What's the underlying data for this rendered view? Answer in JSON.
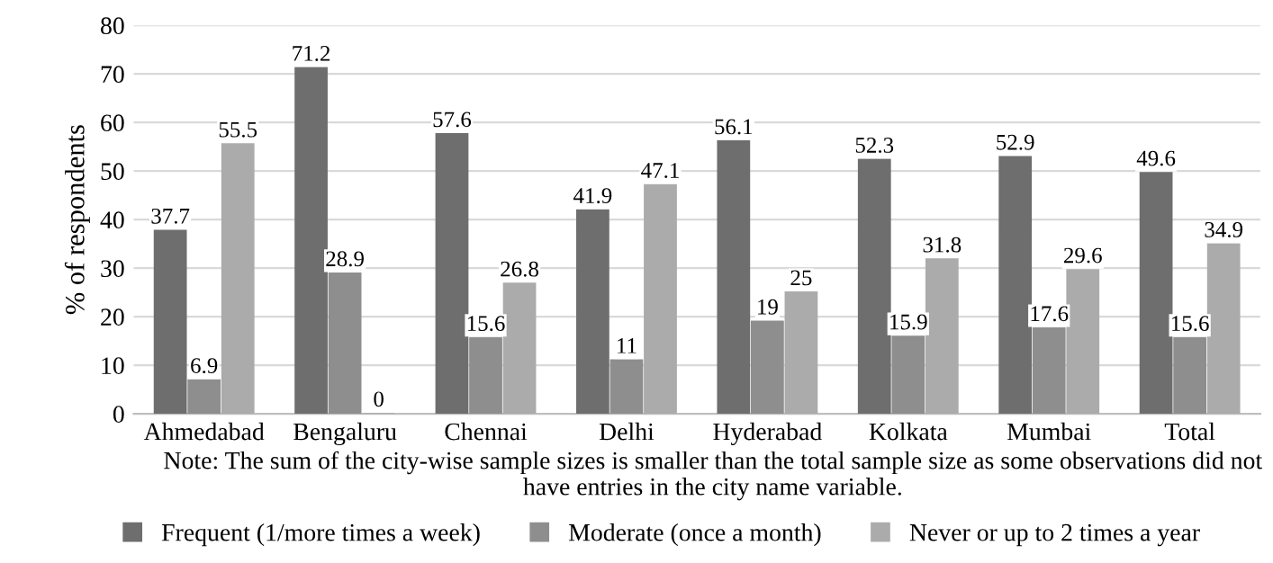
{
  "chart_data": {
    "type": "bar",
    "ylabel": "% of respondents",
    "categories": [
      "Ahmedabad",
      "Bengaluru",
      "Chennai",
      "Delhi",
      "Hyderabad",
      "Kolkata",
      "Mumbai",
      "Total"
    ],
    "series": [
      {
        "name": "Frequent (1/more times a week)",
        "color": "#6e6e6e",
        "values": [
          37.7,
          71.2,
          57.6,
          41.9,
          56.1,
          52.3,
          52.9,
          49.6
        ]
      },
      {
        "name": "Moderate (once a month)",
        "color": "#8e8e8e",
        "values": [
          6.9,
          28.9,
          15.6,
          11,
          19,
          15.9,
          17.6,
          15.6
        ]
      },
      {
        "name": "Never or up to 2 times a year",
        "color": "#ababab",
        "values": [
          55.5,
          0,
          26.8,
          47.1,
          25,
          31.8,
          29.6,
          34.9
        ]
      }
    ],
    "ylim": [
      0,
      80
    ],
    "yticks": [
      0,
      10,
      20,
      30,
      40,
      50,
      60,
      70,
      80
    ],
    "grid": "y",
    "data_labels": true,
    "legend": "bottom",
    "annotations": [
      "Note: The sum of the city-wise sample sizes is smaller than the total sample size as some observations did not have entries in the city name variable."
    ]
  }
}
